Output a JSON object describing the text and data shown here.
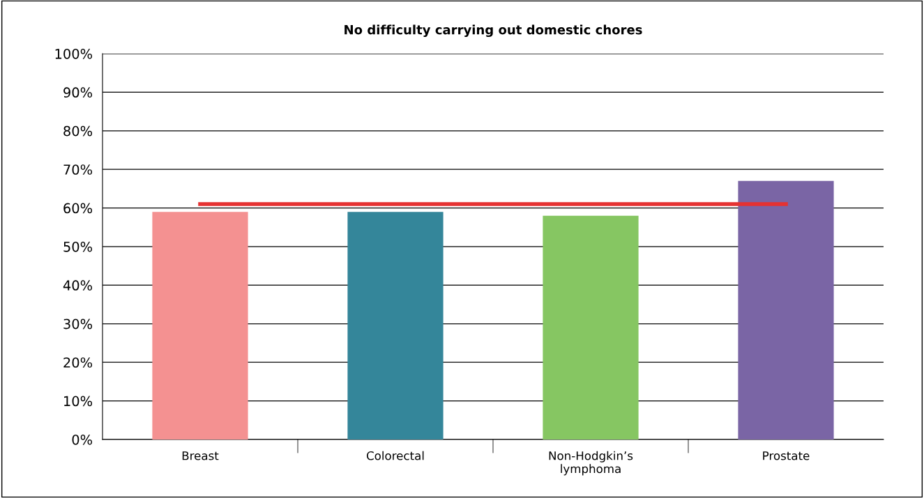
{
  "chart_data": {
    "type": "bar",
    "title": "No difficulty carrying out domestic chores",
    "categories": [
      "Breast",
      "Colorectal",
      "Non-Hodgkin’s\nlymphoma",
      "Prostate"
    ],
    "series": [
      {
        "colors": [
          "#f49191",
          "#34869a",
          "#86c662",
          "#7a65a5"
        ],
        "values": [
          59,
          59,
          58,
          67
        ]
      },
      {
        "type": "line",
        "color": "#e53232",
        "values": [
          61,
          61,
          61,
          61
        ]
      }
    ],
    "ylim": [
      0,
      100
    ],
    "yticks": [
      {
        "value": 0,
        "label": "0%"
      },
      {
        "value": 10,
        "label": "10%"
      },
      {
        "value": 20,
        "label": "20%"
      },
      {
        "value": 30,
        "label": "30%"
      },
      {
        "value": 40,
        "label": "40%"
      },
      {
        "value": 50,
        "label": "50%"
      },
      {
        "value": 60,
        "label": "60%"
      },
      {
        "value": 70,
        "label": "70%"
      },
      {
        "value": 80,
        "label": "80%"
      },
      {
        "value": 90,
        "label": "90%"
      },
      {
        "value": 100,
        "label": "100%"
      }
    ],
    "grid": "y",
    "legend": false
  }
}
